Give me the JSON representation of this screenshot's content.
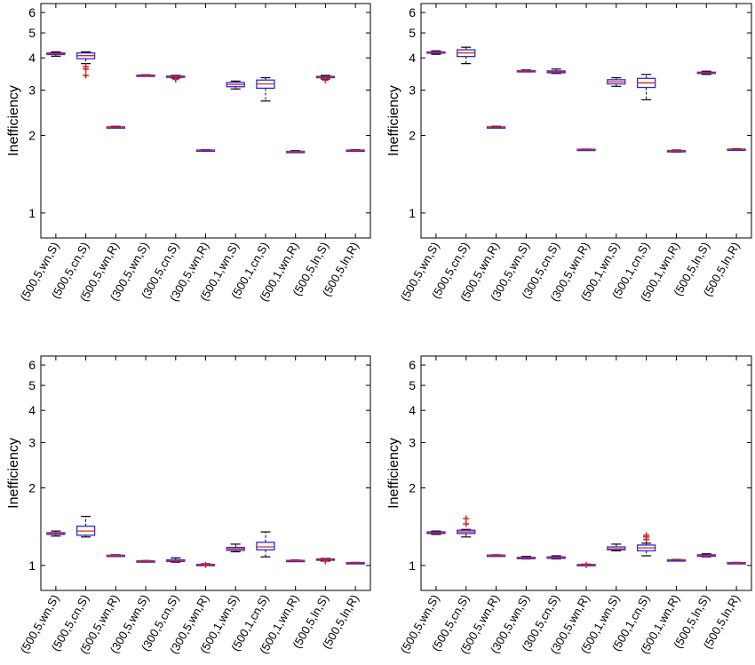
{
  "chart_data": [
    {
      "type": "box",
      "ylabel": "Inefficiency",
      "yscale": "log",
      "ylim": [
        0.8,
        6.5
      ],
      "yticks": [
        1,
        2,
        3,
        4,
        5,
        6
      ],
      "categories": [
        "(500,5,wn,S)",
        "(500,5,cn,S)",
        "(500,5,wn,R)",
        "(300,5,wn,S)",
        "(300,5,cn,S)",
        "(300,5,wn,R)",
        "(500,1,wn,S)",
        "(500,1,cn,S)",
        "(500,1,wn,R)",
        "(500,5,ln,S)",
        "(500,5,ln,R)"
      ],
      "boxes": [
        {
          "lo": 4.06,
          "q1": 4.12,
          "med": 4.15,
          "q3": 4.18,
          "hi": 4.22,
          "outliers": []
        },
        {
          "lo": 3.8,
          "q1": 3.97,
          "med": 4.08,
          "q3": 4.18,
          "hi": 4.22,
          "outliers": [
            3.7,
            3.62,
            3.42
          ]
        },
        {
          "lo": 2.14,
          "q1": 2.15,
          "med": 2.155,
          "q3": 2.16,
          "hi": 2.17,
          "outliers": []
        },
        {
          "lo": 3.4,
          "q1": 3.41,
          "med": 3.42,
          "q3": 3.43,
          "hi": 3.44,
          "outliers": []
        },
        {
          "lo": 3.34,
          "q1": 3.36,
          "med": 3.38,
          "q3": 3.4,
          "hi": 3.42,
          "outliers": [
            3.3
          ]
        },
        {
          "lo": 1.745,
          "q1": 1.75,
          "med": 1.753,
          "q3": 1.756,
          "hi": 1.76,
          "outliers": []
        },
        {
          "lo": 3.03,
          "q1": 3.09,
          "med": 3.15,
          "q3": 3.21,
          "hi": 3.25,
          "outliers": []
        },
        {
          "lo": 2.72,
          "q1": 3.05,
          "med": 3.17,
          "q3": 3.28,
          "hi": 3.35,
          "outliers": []
        },
        {
          "lo": 1.715,
          "q1": 1.725,
          "med": 1.73,
          "q3": 1.735,
          "hi": 1.745,
          "outliers": []
        },
        {
          "lo": 3.31,
          "q1": 3.35,
          "med": 3.37,
          "q3": 3.39,
          "hi": 3.42,
          "outliers": [
            3.28
          ]
        },
        {
          "lo": 1.74,
          "q1": 1.745,
          "med": 1.75,
          "q3": 1.755,
          "hi": 1.76,
          "outliers": []
        }
      ]
    },
    {
      "type": "box",
      "ylabel": "Inefficiency",
      "yscale": "log",
      "ylim": [
        0.8,
        6.5
      ],
      "yticks": [
        1,
        2,
        3,
        4,
        5,
        6
      ],
      "categories": [
        "(500,5,wn,S)",
        "(500,5,cn,S)",
        "(500,5,wn,R)",
        "(300,5,wn,S)",
        "(300,5,cn,S)",
        "(300,5,wn,R)",
        "(500,1,wn,S)",
        "(500,1,cn,S)",
        "(500,1,wn,R)",
        "(500,5,ln,S)",
        "(500,5,ln,R)"
      ],
      "boxes": [
        {
          "lo": 4.13,
          "q1": 4.17,
          "med": 4.2,
          "q3": 4.22,
          "hi": 4.26,
          "outliers": []
        },
        {
          "lo": 3.8,
          "q1": 4.05,
          "med": 4.18,
          "q3": 4.3,
          "hi": 4.4,
          "outliers": []
        },
        {
          "lo": 2.14,
          "q1": 2.15,
          "med": 2.155,
          "q3": 2.16,
          "hi": 2.17,
          "outliers": []
        },
        {
          "lo": 3.53,
          "q1": 3.55,
          "med": 3.56,
          "q3": 3.57,
          "hi": 3.59,
          "outliers": []
        },
        {
          "lo": 3.48,
          "q1": 3.5,
          "med": 3.53,
          "q3": 3.56,
          "hi": 3.62,
          "outliers": []
        },
        {
          "lo": 1.76,
          "q1": 1.763,
          "med": 1.765,
          "q3": 1.768,
          "hi": 1.77,
          "outliers": []
        },
        {
          "lo": 3.1,
          "q1": 3.17,
          "med": 3.23,
          "q3": 3.29,
          "hi": 3.35,
          "outliers": []
        },
        {
          "lo": 2.75,
          "q1": 3.07,
          "med": 3.2,
          "q3": 3.33,
          "hi": 3.45,
          "outliers": []
        },
        {
          "lo": 1.725,
          "q1": 1.733,
          "med": 1.74,
          "q3": 1.747,
          "hi": 1.755,
          "outliers": []
        },
        {
          "lo": 3.45,
          "q1": 3.48,
          "med": 3.5,
          "q3": 3.52,
          "hi": 3.55,
          "outliers": []
        },
        {
          "lo": 1.755,
          "q1": 1.76,
          "med": 1.765,
          "q3": 1.77,
          "hi": 1.775,
          "outliers": []
        }
      ]
    },
    {
      "type": "box",
      "ylabel": "Inefficiency",
      "yscale": "log",
      "ylim": [
        0.8,
        6.5
      ],
      "yticks": [
        1,
        2,
        3,
        4,
        5,
        6
      ],
      "categories": [
        "(500,5,wn,S)",
        "(500,5,cn,S)",
        "(500,5,wn,R)",
        "(300,5,wn,S)",
        "(300,5,cn,S)",
        "(300,5,wn,R)",
        "(500,1,wn,S)",
        "(500,1,cn,S)",
        "(500,1,wn,R)",
        "(500,5,ln,S)",
        "(500,5,ln,R)"
      ],
      "boxes": [
        {
          "lo": 1.3,
          "q1": 1.32,
          "med": 1.33,
          "q3": 1.34,
          "hi": 1.36,
          "outliers": []
        },
        {
          "lo": 1.29,
          "q1": 1.31,
          "med": 1.36,
          "q3": 1.42,
          "hi": 1.55,
          "outliers": []
        },
        {
          "lo": 1.085,
          "q1": 1.09,
          "med": 1.093,
          "q3": 1.096,
          "hi": 1.1,
          "outliers": []
        },
        {
          "lo": 1.035,
          "q1": 1.038,
          "med": 1.04,
          "q3": 1.042,
          "hi": 1.045,
          "outliers": []
        },
        {
          "lo": 1.03,
          "q1": 1.037,
          "med": 1.045,
          "q3": 1.052,
          "hi": 1.07,
          "outliers": []
        },
        {
          "lo": 1.0,
          "q1": 1.004,
          "med": 1.007,
          "q3": 1.01,
          "hi": 1.015,
          "outliers": [
            1.005
          ]
        },
        {
          "lo": 1.13,
          "q1": 1.145,
          "med": 1.16,
          "q3": 1.175,
          "hi": 1.21,
          "outliers": []
        },
        {
          "lo": 1.08,
          "q1": 1.15,
          "med": 1.18,
          "q3": 1.23,
          "hi": 1.35,
          "outliers": []
        },
        {
          "lo": 1.04,
          "q1": 1.043,
          "med": 1.045,
          "q3": 1.047,
          "hi": 1.05,
          "outliers": []
        },
        {
          "lo": 1.04,
          "q1": 1.048,
          "med": 1.055,
          "q3": 1.06,
          "hi": 1.065,
          "outliers": [
            1.04
          ]
        },
        {
          "lo": 1.02,
          "q1": 1.022,
          "med": 1.024,
          "q3": 1.026,
          "hi": 1.028,
          "outliers": []
        }
      ]
    },
    {
      "type": "box",
      "ylabel": "Inefficiency",
      "yscale": "log",
      "ylim": [
        0.8,
        6.5
      ],
      "yticks": [
        1,
        2,
        3,
        4,
        5,
        6
      ],
      "categories": [
        "(500,5,wn,S)",
        "(500,5,cn,S)",
        "(500,5,wn,R)",
        "(300,5,wn,S)",
        "(300,5,cn,S)",
        "(300,5,wn,R)",
        "(500,1,wn,S)",
        "(500,1,cn,S)",
        "(500,1,wn,R)",
        "(500,5,ln,S)",
        "(500,5,ln,R)"
      ],
      "boxes": [
        {
          "lo": 1.32,
          "q1": 1.33,
          "med": 1.34,
          "q3": 1.35,
          "hi": 1.36,
          "outliers": []
        },
        {
          "lo": 1.29,
          "q1": 1.33,
          "med": 1.35,
          "q3": 1.37,
          "hi": 1.38,
          "outliers": [
            1.45,
            1.52
          ]
        },
        {
          "lo": 1.09,
          "q1": 1.093,
          "med": 1.095,
          "q3": 1.097,
          "hi": 1.1,
          "outliers": []
        },
        {
          "lo": 1.06,
          "q1": 1.065,
          "med": 1.07,
          "q3": 1.075,
          "hi": 1.085,
          "outliers": []
        },
        {
          "lo": 1.06,
          "q1": 1.065,
          "med": 1.07,
          "q3": 1.08,
          "hi": 1.09,
          "outliers": []
        },
        {
          "lo": 1.0,
          "q1": 1.003,
          "med": 1.006,
          "q3": 1.009,
          "hi": 1.012,
          "outliers": [
            1.005
          ]
        },
        {
          "lo": 1.14,
          "q1": 1.15,
          "med": 1.16,
          "q3": 1.18,
          "hi": 1.21,
          "outliers": []
        },
        {
          "lo": 1.09,
          "q1": 1.14,
          "med": 1.17,
          "q3": 1.2,
          "hi": 1.22,
          "outliers": [
            1.26,
            1.29,
            1.31
          ]
        },
        {
          "lo": 1.045,
          "q1": 1.048,
          "med": 1.05,
          "q3": 1.052,
          "hi": 1.055,
          "outliers": []
        },
        {
          "lo": 1.08,
          "q1": 1.085,
          "med": 1.09,
          "q3": 1.1,
          "hi": 1.11,
          "outliers": []
        },
        {
          "lo": 1.02,
          "q1": 1.022,
          "med": 1.024,
          "q3": 1.026,
          "hi": 1.028,
          "outliers": []
        }
      ]
    }
  ]
}
